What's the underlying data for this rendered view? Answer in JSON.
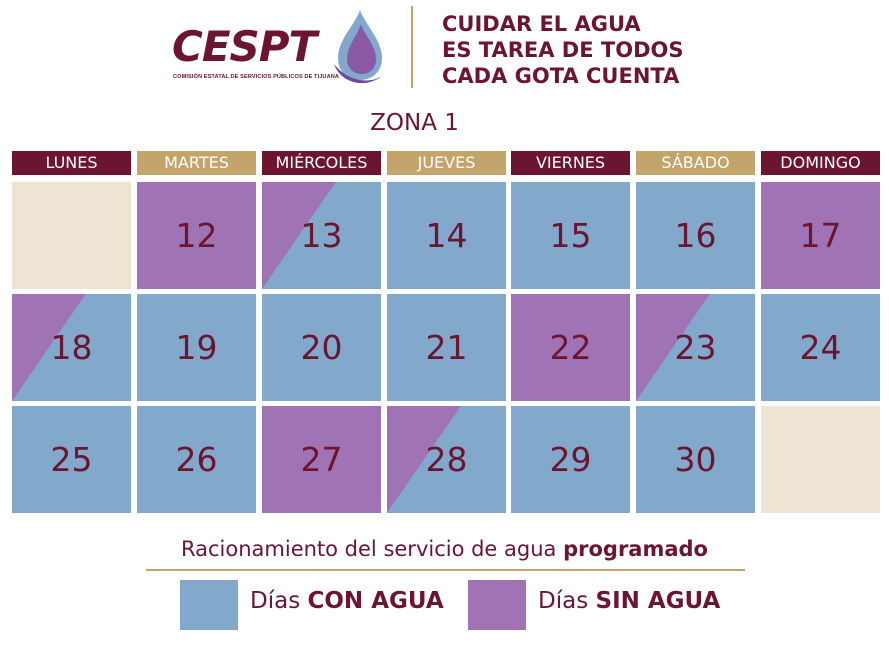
{
  "colors": {
    "con_agua": "#82a9cc",
    "sin_agua": "#a074b4",
    "empty": "#ede4d3",
    "header_dark": "#6b1530",
    "header_gold": "#c3a46b"
  },
  "header": {
    "logo_text": "CESPT",
    "logo_subtitle": "COMISIÓN ESTATAL DE SERVICIOS PÚBLICOS DE TIJUANA",
    "logo_icon": "water-drop-icon",
    "slogan": [
      "CUIDAR EL AGUA",
      "ES TAREA DE TODOS",
      "CADA GOTA CUENTA"
    ]
  },
  "zone_title": "ZONA 1",
  "weekdays": [
    {
      "label": "LUNES",
      "style": "dark"
    },
    {
      "label": "MARTES",
      "style": "gold"
    },
    {
      "label": "MIÉRCOLES",
      "style": "dark"
    },
    {
      "label": "JUEVES",
      "style": "gold"
    },
    {
      "label": "VIERNES",
      "style": "dark"
    },
    {
      "label": "SÁBADO",
      "style": "gold"
    },
    {
      "label": "DOMINGO",
      "style": "dark"
    }
  ],
  "weeks": [
    [
      {
        "day": "",
        "status": "empty"
      },
      {
        "day": "12",
        "status": "sin"
      },
      {
        "day": "13",
        "status": "split"
      },
      {
        "day": "14",
        "status": "con"
      },
      {
        "day": "15",
        "status": "con"
      },
      {
        "day": "16",
        "status": "con"
      },
      {
        "day": "17",
        "status": "sin"
      }
    ],
    [
      {
        "day": "18",
        "status": "split"
      },
      {
        "day": "19",
        "status": "con"
      },
      {
        "day": "20",
        "status": "con"
      },
      {
        "day": "21",
        "status": "con"
      },
      {
        "day": "22",
        "status": "sin"
      },
      {
        "day": "23",
        "status": "split"
      },
      {
        "day": "24",
        "status": "con"
      }
    ],
    [
      {
        "day": "25",
        "status": "con"
      },
      {
        "day": "26",
        "status": "con"
      },
      {
        "day": "27",
        "status": "sin"
      },
      {
        "day": "28",
        "status": "split"
      },
      {
        "day": "29",
        "status": "con"
      },
      {
        "day": "30",
        "status": "con"
      },
      {
        "day": "",
        "status": "empty"
      }
    ]
  ],
  "legend": {
    "title_prefix": "Racionamiento del servicio de agua ",
    "title_bold": "programado",
    "items": [
      {
        "prefix": "Días ",
        "bold": "CON AGUA",
        "status": "con"
      },
      {
        "prefix": "Días ",
        "bold": "SIN AGUA",
        "status": "sin"
      }
    ]
  }
}
